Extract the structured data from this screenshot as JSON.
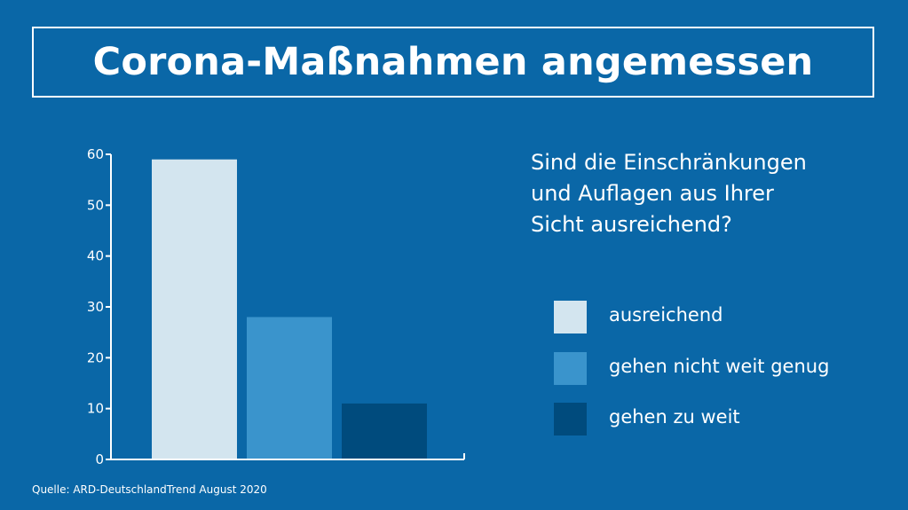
{
  "header": {
    "title": "Corona-Maßnahmen angemessen"
  },
  "question": {
    "lines": [
      "Sind die Einschränkungen",
      "und Auflagen aus Ihrer",
      "Sicht ausreichend?"
    ]
  },
  "legend": [
    {
      "label": "ausreichend",
      "color": "#d3e5ef"
    },
    {
      "label": "gehen nicht weit genug",
      "color": "#3a94cc"
    },
    {
      "label": "gehen zu weit",
      "color": "#004b7d"
    }
  ],
  "source": "Quelle: ARD-DeutschlandTrend August 2020",
  "chart_data": {
    "type": "bar",
    "categories": [
      "ausreichend",
      "gehen nicht weit genug",
      "gehen zu weit"
    ],
    "values": [
      59,
      28,
      11
    ],
    "colors": [
      "#d3e5ef",
      "#3a94cc",
      "#004b7d"
    ],
    "ylim": [
      0,
      60
    ],
    "yticks": [
      0,
      10,
      20,
      30,
      40,
      50,
      60
    ],
    "xlabel": "",
    "ylabel": "",
    "grid": false,
    "legend_position": "right"
  }
}
